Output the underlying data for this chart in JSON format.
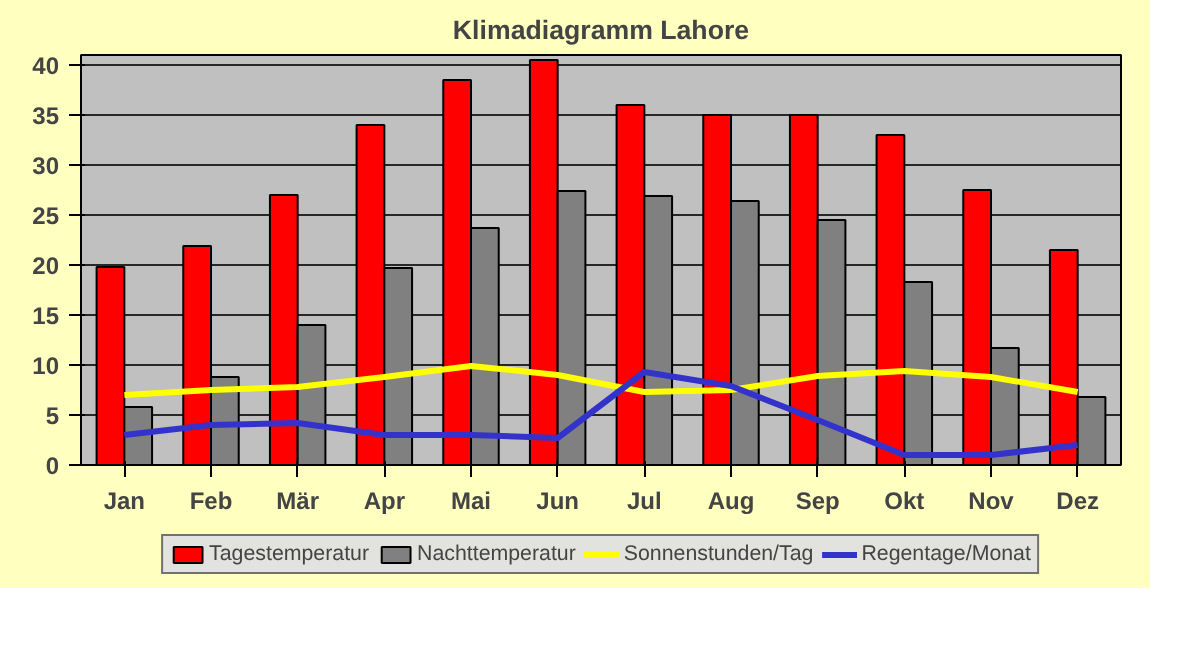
{
  "chart_data": {
    "type": "bar",
    "title": "Klimadiagramm Lahore",
    "categories": [
      "Jan",
      "Feb",
      "Mär",
      "Apr",
      "Mai",
      "Jun",
      "Jul",
      "Aug",
      "Sep",
      "Okt",
      "Nov",
      "Dez"
    ],
    "series": [
      {
        "name": "Tagestemperatur",
        "color": "#ff0000",
        "values": [
          19.8,
          21.9,
          27,
          34,
          38.5,
          40.5,
          36,
          35,
          35,
          33,
          27.5,
          21.5
        ]
      },
      {
        "name": "Nachttemperatur",
        "color": "#808080",
        "values": [
          5.8,
          8.8,
          14,
          19.7,
          23.7,
          27.4,
          26.9,
          26.4,
          24.5,
          18.3,
          11.7,
          6.8
        ]
      },
      {
        "name": "Sonnenstunden/Tag",
        "type": "line",
        "color": "#ffff00",
        "values": [
          7,
          7.5,
          7.8,
          8.8,
          9.9,
          9,
          7.3,
          7.5,
          8.9,
          9.4,
          8.8,
          7.3
        ]
      },
      {
        "name": "Regentage/Monat",
        "type": "line",
        "color": "#3333cc",
        "values": [
          3,
          4,
          4.2,
          3,
          3,
          2.7,
          9.3,
          7.9,
          4.5,
          1,
          1,
          2
        ]
      }
    ],
    "ylim": [
      0,
      41
    ],
    "yticks": [
      0,
      5,
      10,
      15,
      20,
      25,
      30,
      35,
      40
    ],
    "grid": "y",
    "legend": "bottom",
    "marker": "none",
    "line_style": "solid"
  }
}
